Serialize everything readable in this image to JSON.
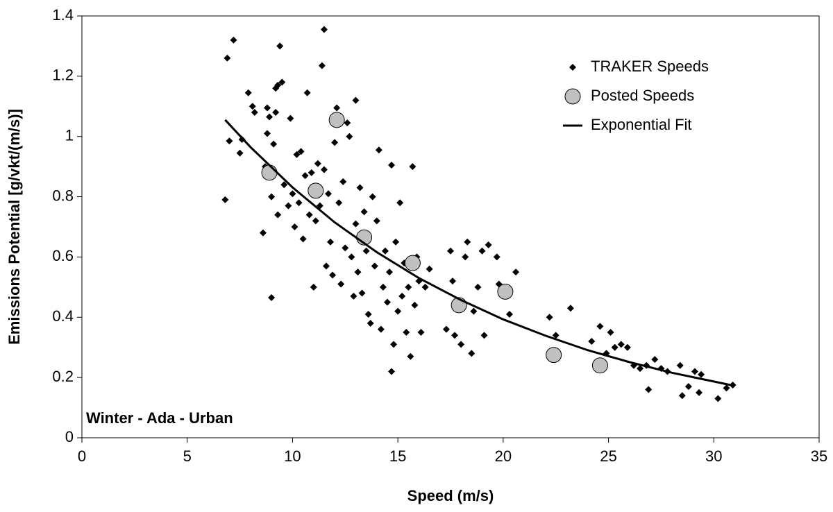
{
  "chart_data": {
    "type": "scatter",
    "x_label": "Speed (m/s)",
    "y_label": "Emissions Potential [g/vkt/(m/s)]",
    "annotation": "Winter - Ada - Urban",
    "xlim": [
      0,
      35
    ],
    "xticks": [
      0,
      5,
      10,
      15,
      20,
      25,
      30,
      35
    ],
    "ylim": [
      0,
      1.4
    ],
    "yticks": [
      0,
      0.2,
      0.4,
      0.6,
      0.8,
      1,
      1.2,
      1.4
    ],
    "grid": false,
    "legend": "upper right",
    "series": [
      {
        "name": "TRAKER Speeds",
        "marker": "diamond",
        "color": "#000000",
        "x": [
          6.8,
          6.9,
          7,
          7.2,
          7.5,
          7.6,
          7.9,
          8.1,
          8.2,
          8.6,
          8.7,
          8.8,
          8.8,
          8.9,
          9,
          9,
          9.1,
          9.2,
          9.2,
          9.3,
          9.3,
          9.4,
          9.5,
          9.6,
          9.8,
          9.9,
          10,
          10.1,
          10.2,
          10.3,
          10.4,
          10.5,
          10.6,
          10.7,
          10.8,
          10.9,
          11,
          11.1,
          11.2,
          11.3,
          11.4,
          11.5,
          11.5,
          11.6,
          11.7,
          11.8,
          11.9,
          12,
          12.1,
          12.2,
          12.3,
          12.4,
          12.5,
          12.6,
          12.7,
          12.8,
          12.9,
          13,
          13,
          13.1,
          13.2,
          13.3,
          13.4,
          13.5,
          13.6,
          13.7,
          13.8,
          13.9,
          14,
          14.1,
          14.2,
          14.3,
          14.4,
          14.5,
          14.6,
          14.7,
          14.7,
          14.8,
          14.9,
          15,
          15.1,
          15.2,
          15.3,
          15.4,
          15.5,
          15.6,
          15.7,
          15.8,
          15.9,
          16,
          16.1,
          16.3,
          16.5,
          17.3,
          17.5,
          17.6,
          17.7,
          18,
          18.2,
          18.3,
          18.5,
          18.6,
          18.8,
          19,
          19.1,
          19.3,
          19.7,
          19.8,
          20.3,
          20.6,
          22.2,
          22.5,
          23.2,
          24.2,
          24.6,
          24.9,
          25.1,
          25.3,
          25.6,
          25.9,
          26.2,
          26.5,
          26.8,
          26.9,
          27.2,
          27.5,
          27.8,
          28.4,
          28.5,
          28.8,
          29.1,
          29.3,
          29.4,
          30.2,
          30.6,
          30.9
        ],
        "values": [
          0.79,
          1.26,
          0.985,
          1.32,
          0.945,
          0.99,
          1.145,
          1.1,
          1.08,
          0.68,
          0.9,
          1.01,
          1.095,
          1.065,
          0.8,
          0.465,
          0.975,
          1.08,
          1.16,
          1.17,
          0.74,
          1.3,
          1.18,
          0.84,
          0.77,
          1.06,
          0.81,
          0.7,
          0.94,
          0.78,
          0.95,
          0.66,
          0.87,
          1.145,
          0.74,
          0.88,
          0.5,
          0.72,
          0.91,
          0.77,
          1.235,
          1.355,
          0.89,
          0.57,
          0.81,
          0.65,
          0.54,
          0.98,
          1.095,
          0.78,
          0.51,
          0.85,
          0.63,
          1.045,
          1.0,
          0.6,
          0.47,
          1.12,
          0.71,
          0.55,
          0.83,
          0.48,
          0.75,
          0.62,
          0.41,
          0.38,
          0.8,
          0.57,
          0.72,
          0.955,
          0.36,
          0.5,
          0.62,
          0.45,
          0.55,
          0.22,
          0.905,
          0.31,
          0.65,
          0.42,
          0.78,
          0.47,
          0.58,
          0.35,
          0.5,
          0.27,
          0.9,
          0.44,
          0.6,
          0.52,
          0.35,
          0.5,
          0.56,
          0.36,
          0.62,
          0.52,
          0.34,
          0.31,
          0.6,
          0.65,
          0.28,
          0.42,
          0.5,
          0.62,
          0.34,
          0.64,
          0.6,
          0.51,
          0.41,
          0.55,
          0.4,
          0.34,
          0.43,
          0.32,
          0.37,
          0.28,
          0.35,
          0.3,
          0.31,
          0.3,
          0.24,
          0.23,
          0.24,
          0.16,
          0.26,
          0.23,
          0.22,
          0.24,
          0.14,
          0.17,
          0.22,
          0.15,
          0.21,
          0.13,
          0.165,
          0.175
        ]
      },
      {
        "name": "Posted Speeds",
        "marker": "circle",
        "color": "#c0c0c0",
        "x": [
          8.9,
          11.1,
          12.1,
          13.4,
          15.7,
          17.9,
          20.1,
          22.4,
          24.6
        ],
        "values": [
          0.88,
          0.82,
          1.055,
          0.665,
          0.58,
          0.44,
          0.485,
          0.275,
          0.24
        ]
      },
      {
        "name": "Exponential Fit",
        "marker": "line",
        "color": "#000000",
        "x": [
          6.8,
          8,
          10,
          12,
          14,
          16,
          18,
          20,
          22,
          24,
          26,
          28,
          30.8
        ],
        "values": [
          1.055,
          0.965,
          0.831,
          0.715,
          0.616,
          0.53,
          0.457,
          0.393,
          0.339,
          0.291,
          0.251,
          0.216,
          0.175
        ]
      }
    ]
  }
}
